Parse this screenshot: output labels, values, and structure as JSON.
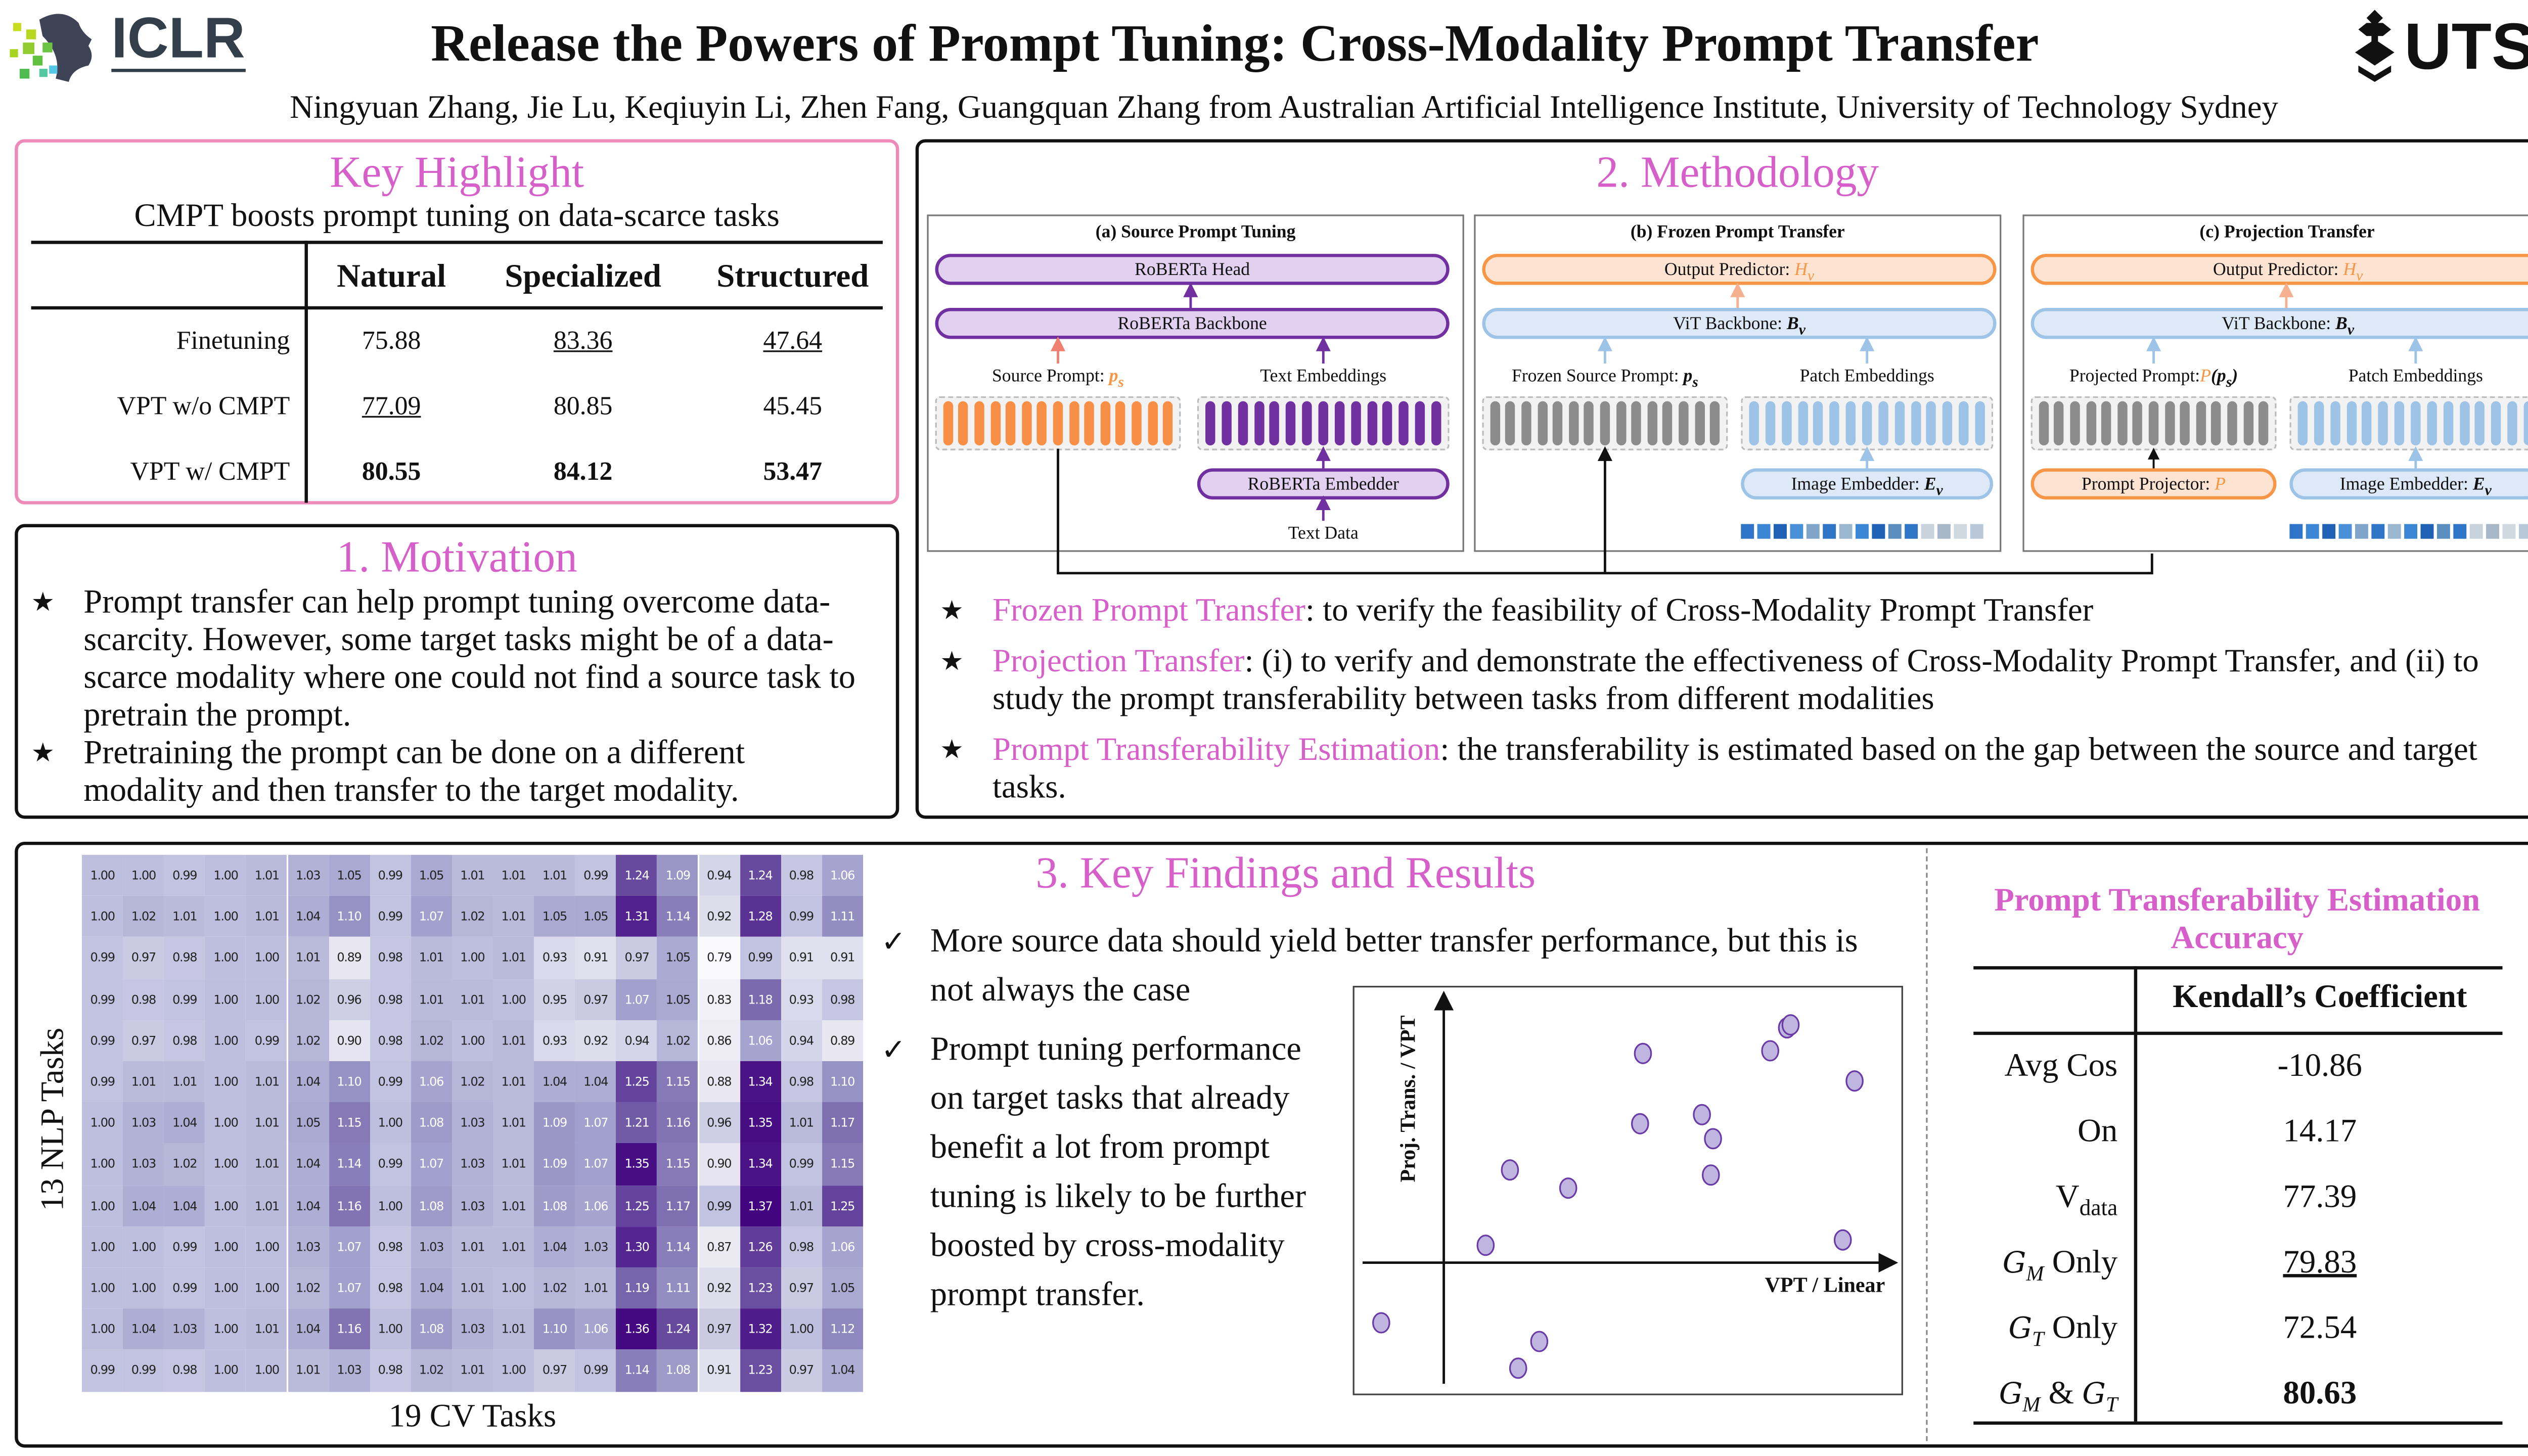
{
  "header": {
    "logo_left": "ICLR",
    "title": "Release the Powers of Prompt Tuning: Cross-Modality Prompt Transfer",
    "authors": "Ningyuan Zhang, Jie Lu, Keqiuyin Li, Zhen Fang, Guangquan Zhang from Australian Artificial Intelligence Institute, University of Technology Sydney",
    "logo_right": "UTS"
  },
  "colors": {
    "accent": "#d65fc9",
    "purple": "#7030a0",
    "orange": "#f79646",
    "blue": "#9dc3e6"
  },
  "highlight": {
    "title": "Key Highlight",
    "subtitle": "CMPT boosts prompt tuning on data-scarce tasks",
    "columns": [
      "Natural",
      "Specialized",
      "Structured"
    ],
    "rows": [
      {
        "label": "Finetuning",
        "cells": [
          {
            "v": "75.88",
            "s": ""
          },
          {
            "v": "83.36",
            "s": "u"
          },
          {
            "v": "47.64",
            "s": "u"
          }
        ]
      },
      {
        "label": "VPT w/o CMPT",
        "cells": [
          {
            "v": "77.09",
            "s": "u"
          },
          {
            "v": "80.85",
            "s": ""
          },
          {
            "v": "45.45",
            "s": ""
          }
        ]
      },
      {
        "label": "VPT w/ CMPT",
        "cells": [
          {
            "v": "80.55",
            "s": "b"
          },
          {
            "v": "84.12",
            "s": "b"
          },
          {
            "v": "53.47",
            "s": "b"
          }
        ]
      }
    ]
  },
  "motivation": {
    "title": "1. Motivation",
    "bullets": [
      "Prompt transfer can help prompt tuning overcome data-scarcity. However, some target tasks might be of a data-scarce modality where one could not find a source task to pretrain the prompt.",
      "Pretraining the prompt can be done on a different modality and then transfer to the target modality."
    ]
  },
  "methodology": {
    "title": "2. Methodology",
    "panels": {
      "a": {
        "title": "(a) Source Prompt Tuning",
        "head": "RoBERTa Head",
        "backbone": "RoBERTa Backbone",
        "prompt_label": "Source Prompt: ",
        "prompt_sym": "p",
        "prompt_sub": "s",
        "emb_label": "Text Embeddings",
        "embedder": "RoBERTa Embedder",
        "input": "Text Data"
      },
      "b": {
        "title": "(b) Frozen Prompt Transfer",
        "head": "Output Predictor: ",
        "head_sym": "H",
        "head_sub": "v",
        "backbone": "ViT Backbone: ",
        "backbone_sym": "B",
        "backbone_sub": "v",
        "prompt_label": "Frozen Source Prompt: ",
        "prompt_sym": "p",
        "prompt_sub": "s",
        "emb_label": "Patch Embeddings",
        "embedder": "Image Embedder: ",
        "embedder_sym": "E",
        "embedder_sub": "v"
      },
      "c": {
        "title": "(c) Projection Transfer",
        "head": "Output Predictor: ",
        "head_sym": "H",
        "head_sub": "v",
        "backbone": "ViT Backbone: ",
        "backbone_sym": "B",
        "backbone_sub": "v",
        "prompt_label": "Projected Prompt:",
        "prompt_sym": "P",
        "prompt_arg": "(p",
        "prompt_sub": "s",
        "prompt_close": ")",
        "emb_label": "Patch Embeddings",
        "projector": "Prompt Projector: ",
        "projector_sym": "P",
        "embedder": "Image Embedder: ",
        "embedder_sym": "E",
        "embedder_sub": "v"
      }
    },
    "bullets": [
      {
        "key": "Frozen Prompt Transfer",
        "text": ": to verify the feasibility of Cross-Modality Prompt Transfer"
      },
      {
        "key": "Projection Transfer",
        "text": ": (i) to verify and demonstrate the effectiveness of Cross-Modality Prompt Transfer, and (ii) to study the prompt transferability between tasks from different modalities"
      },
      {
        "key": "Prompt Transferability Estimation",
        "text": ": the transferability is estimated based on the gap between the source and target tasks."
      }
    ]
  },
  "results": {
    "title": "3. Key Findings and Results",
    "findings": [
      "More source data should yield better transfer performance, but this is not always the case",
      "Prompt tuning performance on target tasks that already benefit a lot from prompt tuning is likely to be further boosted by cross-modality prompt transfer."
    ],
    "estimation": {
      "title": "Prompt Transferability Estimation Accuracy",
      "header": "Kendall’s Coefficient",
      "rows": [
        {
          "sym": "",
          "label": "Avg Cos",
          "sub": "",
          "value": "-10.86",
          "s": ""
        },
        {
          "sym": "",
          "label": "On",
          "sub": "",
          "value": "14.17",
          "s": ""
        },
        {
          "sym": "",
          "label": "V",
          "sub": "data",
          "value": "77.39",
          "s": ""
        },
        {
          "sym": "G",
          "label": " Only",
          "sub": "M",
          "value": "79.83",
          "s": "u"
        },
        {
          "sym": "G",
          "label": " Only",
          "sub": "T",
          "value": "72.54",
          "s": ""
        },
        {
          "sym": "G",
          "label": "",
          "sub": "M",
          "extra": " & ",
          "sym2": "G",
          "sub2": "T",
          "value": "80.63",
          "s": "b"
        }
      ]
    }
  },
  "chart_data": [
    {
      "type": "heatmap",
      "title": "",
      "xlabel": "19 CV Tasks",
      "ylabel": "13 NLP Tasks",
      "colormap": "Purples",
      "values": [
        [
          1.0,
          1.0,
          0.99,
          1.0,
          1.01,
          1.03,
          1.05,
          0.99,
          1.05,
          1.01,
          1.01,
          1.01,
          0.99,
          1.24,
          1.09,
          0.94,
          1.24,
          0.98,
          1.06
        ],
        [
          1.0,
          1.02,
          1.01,
          1.0,
          1.01,
          1.04,
          1.1,
          0.99,
          1.07,
          1.02,
          1.01,
          1.05,
          1.05,
          1.31,
          1.14,
          0.92,
          1.28,
          0.99,
          1.11
        ],
        [
          0.99,
          0.97,
          0.98,
          1.0,
          1.0,
          1.01,
          0.89,
          0.98,
          1.01,
          1.0,
          1.01,
          0.93,
          0.91,
          0.97,
          1.05,
          0.79,
          0.99,
          0.91,
          0.91
        ],
        [
          0.99,
          0.98,
          0.99,
          1.0,
          1.0,
          1.02,
          0.96,
          0.98,
          1.01,
          1.01,
          1.0,
          0.95,
          0.97,
          1.07,
          1.05,
          0.83,
          1.18,
          0.93,
          0.98
        ],
        [
          0.99,
          0.97,
          0.98,
          1.0,
          0.99,
          1.02,
          0.9,
          0.98,
          1.02,
          1.0,
          1.01,
          0.93,
          0.92,
          0.94,
          1.02,
          0.86,
          1.06,
          0.94,
          0.89
        ],
        [
          0.99,
          1.01,
          1.01,
          1.0,
          1.01,
          1.04,
          1.1,
          0.99,
          1.06,
          1.02,
          1.01,
          1.04,
          1.04,
          1.25,
          1.15,
          0.88,
          1.34,
          0.98,
          1.1
        ],
        [
          1.0,
          1.03,
          1.04,
          1.0,
          1.01,
          1.05,
          1.15,
          1.0,
          1.08,
          1.03,
          1.01,
          1.09,
          1.07,
          1.21,
          1.16,
          0.96,
          1.35,
          1.01,
          1.17
        ],
        [
          1.0,
          1.03,
          1.02,
          1.0,
          1.01,
          1.04,
          1.14,
          0.99,
          1.07,
          1.03,
          1.01,
          1.09,
          1.07,
          1.35,
          1.15,
          0.9,
          1.34,
          0.99,
          1.15
        ],
        [
          1.0,
          1.04,
          1.04,
          1.0,
          1.01,
          1.04,
          1.16,
          1.0,
          1.08,
          1.03,
          1.01,
          1.08,
          1.06,
          1.25,
          1.17,
          0.99,
          1.37,
          1.01,
          1.25
        ],
        [
          1.0,
          1.0,
          0.99,
          1.0,
          1.0,
          1.03,
          1.07,
          0.98,
          1.03,
          1.01,
          1.01,
          1.04,
          1.03,
          1.3,
          1.14,
          0.87,
          1.26,
          0.98,
          1.06
        ],
        [
          1.0,
          1.0,
          0.99,
          1.0,
          1.0,
          1.02,
          1.07,
          0.98,
          1.04,
          1.01,
          1.0,
          1.02,
          1.01,
          1.19,
          1.11,
          0.92,
          1.23,
          0.97,
          1.05
        ],
        [
          1.0,
          1.04,
          1.03,
          1.0,
          1.01,
          1.04,
          1.16,
          1.0,
          1.08,
          1.03,
          1.01,
          1.1,
          1.06,
          1.36,
          1.24,
          0.97,
          1.32,
          1.0,
          1.12
        ],
        [
          0.99,
          0.99,
          0.98,
          1.0,
          1.0,
          1.01,
          1.03,
          0.98,
          1.02,
          1.01,
          1.0,
          0.97,
          0.99,
          1.14,
          1.08,
          0.91,
          1.23,
          0.97,
          1.04
        ]
      ],
      "vmin": 0.79,
      "vmax": 1.37
    },
    {
      "type": "scatter",
      "xlabel": "VPT / Linear",
      "ylabel": "Proj. Trans. / VPT",
      "xlim": [
        -2.5,
        12.8
      ],
      "ylim": [
        -4.9,
        10.3
      ],
      "points": [
        [
          -1.75,
          -2.25
        ],
        [
          1.17,
          0.65
        ],
        [
          1.85,
          3.47
        ],
        [
          3.48,
          2.79
        ],
        [
          2.67,
          -2.95
        ],
        [
          2.08,
          -3.95
        ],
        [
          5.57,
          7.83
        ],
        [
          5.49,
          5.2
        ],
        [
          7.22,
          5.54
        ],
        [
          7.53,
          4.64
        ],
        [
          7.47,
          3.28
        ],
        [
          9.13,
          7.93
        ],
        [
          9.6,
          8.79
        ],
        [
          9.7,
          8.9
        ],
        [
          11.49,
          6.8
        ],
        [
          11.16,
          0.85
        ]
      ]
    }
  ]
}
